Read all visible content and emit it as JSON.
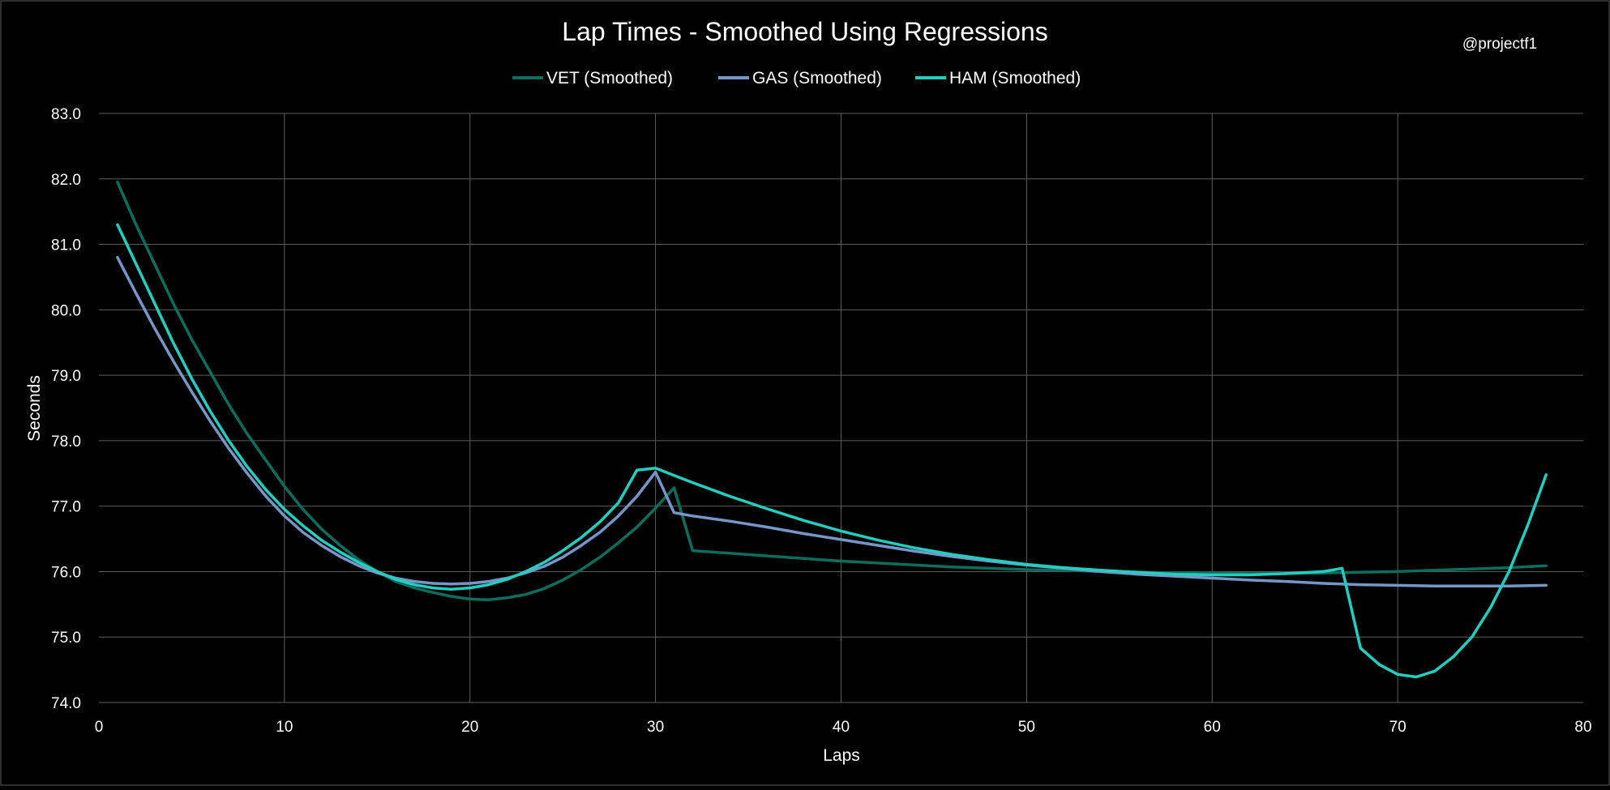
{
  "watermark": "@projectf1",
  "chart_data": {
    "type": "line",
    "title": "Lap Times - Smoothed Using Regressions",
    "xlabel": "Laps",
    "ylabel": "Seconds",
    "xlim": [
      0,
      80
    ],
    "ylim": [
      74.0,
      83.0
    ],
    "x_ticks": [
      0,
      10,
      20,
      30,
      40,
      50,
      60,
      70,
      80
    ],
    "y_ticks": [
      74.0,
      75.0,
      76.0,
      77.0,
      78.0,
      79.0,
      80.0,
      81.0,
      82.0,
      83.0
    ],
    "y_tick_decimals": 1,
    "grid": true,
    "legend_position": "top-center",
    "series": [
      {
        "name": "VET (Smoothed)",
        "color": "#0b6e5c",
        "points": [
          [
            1,
            81.95
          ],
          [
            2,
            81.3
          ],
          [
            3,
            80.7
          ],
          [
            4,
            80.1
          ],
          [
            5,
            79.55
          ],
          [
            6,
            79.05
          ],
          [
            7,
            78.55
          ],
          [
            8,
            78.1
          ],
          [
            9,
            77.7
          ],
          [
            10,
            77.3
          ],
          [
            11,
            76.95
          ],
          [
            12,
            76.65
          ],
          [
            13,
            76.4
          ],
          [
            14,
            76.18
          ],
          [
            15,
            76.0
          ],
          [
            16,
            75.85
          ],
          [
            17,
            75.75
          ],
          [
            18,
            75.68
          ],
          [
            19,
            75.62
          ],
          [
            20,
            75.58
          ],
          [
            21,
            75.57
          ],
          [
            22,
            75.6
          ],
          [
            23,
            75.65
          ],
          [
            24,
            75.74
          ],
          [
            25,
            75.87
          ],
          [
            26,
            76.03
          ],
          [
            27,
            76.22
          ],
          [
            28,
            76.44
          ],
          [
            29,
            76.68
          ],
          [
            30,
            76.97
          ],
          [
            31,
            77.28
          ],
          [
            32,
            76.32
          ],
          [
            34,
            76.28
          ],
          [
            36,
            76.24
          ],
          [
            38,
            76.2
          ],
          [
            40,
            76.16
          ],
          [
            42,
            76.13
          ],
          [
            44,
            76.1
          ],
          [
            46,
            76.07
          ],
          [
            48,
            76.05
          ],
          [
            50,
            76.03
          ],
          [
            52,
            76.02
          ],
          [
            54,
            76.0
          ],
          [
            56,
            75.99
          ],
          [
            58,
            75.98
          ],
          [
            60,
            75.98
          ],
          [
            62,
            75.97
          ],
          [
            64,
            75.97
          ],
          [
            66,
            75.98
          ],
          [
            68,
            75.99
          ],
          [
            70,
            76.0
          ],
          [
            72,
            76.02
          ],
          [
            74,
            76.04
          ],
          [
            76,
            76.06
          ],
          [
            78,
            76.09
          ]
        ]
      },
      {
        "name": "GAS (Smoothed)",
        "color": "#7596c8",
        "points": [
          [
            1,
            80.8
          ],
          [
            2,
            80.25
          ],
          [
            3,
            79.72
          ],
          [
            4,
            79.22
          ],
          [
            5,
            78.75
          ],
          [
            6,
            78.3
          ],
          [
            7,
            77.88
          ],
          [
            8,
            77.5
          ],
          [
            9,
            77.15
          ],
          [
            10,
            76.85
          ],
          [
            11,
            76.6
          ],
          [
            12,
            76.4
          ],
          [
            13,
            76.23
          ],
          [
            14,
            76.09
          ],
          [
            15,
            75.98
          ],
          [
            16,
            75.9
          ],
          [
            17,
            75.85
          ],
          [
            18,
            75.82
          ],
          [
            19,
            75.81
          ],
          [
            20,
            75.82
          ],
          [
            21,
            75.85
          ],
          [
            22,
            75.9
          ],
          [
            23,
            75.98
          ],
          [
            24,
            76.08
          ],
          [
            25,
            76.22
          ],
          [
            26,
            76.4
          ],
          [
            27,
            76.6
          ],
          [
            28,
            76.85
          ],
          [
            29,
            77.15
          ],
          [
            30,
            77.52
          ],
          [
            31,
            76.9
          ],
          [
            32,
            76.85
          ],
          [
            34,
            76.77
          ],
          [
            36,
            76.68
          ],
          [
            38,
            76.58
          ],
          [
            40,
            76.49
          ],
          [
            42,
            76.4
          ],
          [
            44,
            76.31
          ],
          [
            46,
            76.23
          ],
          [
            48,
            76.16
          ],
          [
            50,
            76.1
          ],
          [
            52,
            76.05
          ],
          [
            54,
            76.0
          ],
          [
            56,
            75.96
          ],
          [
            58,
            75.93
          ],
          [
            60,
            75.9
          ],
          [
            62,
            75.87
          ],
          [
            64,
            75.85
          ],
          [
            66,
            75.82
          ],
          [
            68,
            75.8
          ],
          [
            70,
            75.79
          ],
          [
            72,
            75.78
          ],
          [
            74,
            75.78
          ],
          [
            76,
            75.78
          ],
          [
            78,
            75.79
          ]
        ]
      },
      {
        "name": "HAM (Smoothed)",
        "color": "#20cfc0",
        "points": [
          [
            1,
            81.3
          ],
          [
            2,
            80.7
          ],
          [
            3,
            80.1
          ],
          [
            4,
            79.5
          ],
          [
            5,
            78.95
          ],
          [
            6,
            78.45
          ],
          [
            7,
            78.0
          ],
          [
            8,
            77.6
          ],
          [
            9,
            77.25
          ],
          [
            10,
            76.95
          ],
          [
            11,
            76.7
          ],
          [
            12,
            76.48
          ],
          [
            13,
            76.3
          ],
          [
            14,
            76.14
          ],
          [
            15,
            76.0
          ],
          [
            16,
            75.88
          ],
          [
            17,
            75.8
          ],
          [
            18,
            75.75
          ],
          [
            19,
            75.73
          ],
          [
            20,
            75.75
          ],
          [
            21,
            75.8
          ],
          [
            22,
            75.88
          ],
          [
            23,
            76.0
          ],
          [
            24,
            76.14
          ],
          [
            25,
            76.32
          ],
          [
            26,
            76.52
          ],
          [
            27,
            76.76
          ],
          [
            28,
            77.05
          ],
          [
            29,
            77.55
          ],
          [
            30,
            77.58
          ],
          [
            31,
            77.47
          ],
          [
            32,
            77.36
          ],
          [
            34,
            77.15
          ],
          [
            36,
            76.96
          ],
          [
            38,
            76.78
          ],
          [
            40,
            76.62
          ],
          [
            42,
            76.48
          ],
          [
            44,
            76.36
          ],
          [
            46,
            76.26
          ],
          [
            48,
            76.18
          ],
          [
            50,
            76.11
          ],
          [
            52,
            76.06
          ],
          [
            54,
            76.02
          ],
          [
            56,
            75.99
          ],
          [
            58,
            75.96
          ],
          [
            60,
            75.95
          ],
          [
            62,
            75.95
          ],
          [
            64,
            75.97
          ],
          [
            66,
            76.0
          ],
          [
            67,
            76.05
          ],
          [
            68,
            74.83
          ],
          [
            69,
            74.58
          ],
          [
            70,
            74.43
          ],
          [
            71,
            74.39
          ],
          [
            72,
            74.48
          ],
          [
            73,
            74.7
          ],
          [
            74,
            75.0
          ],
          [
            75,
            75.45
          ],
          [
            76,
            76.0
          ],
          [
            77,
            76.7
          ],
          [
            78,
            77.48
          ]
        ]
      }
    ]
  }
}
